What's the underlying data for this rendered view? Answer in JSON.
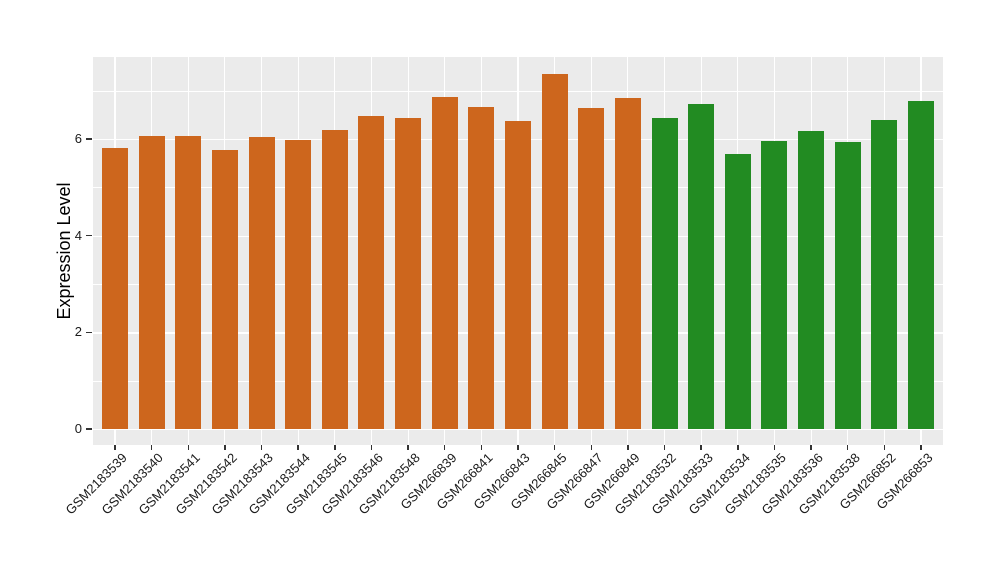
{
  "chart_data": {
    "type": "bar",
    "title": "",
    "xlabel": "",
    "ylabel": "Expression Level",
    "ylim": [
      0,
      7.7
    ],
    "yticks_major": [
      0,
      2,
      4,
      6
    ],
    "yticks_minor": [
      1,
      3,
      5,
      7
    ],
    "grid": true,
    "legend": "none",
    "panel_background": "#EBEBEB",
    "gridline_color": "#FFFFFF",
    "tick_color": "#333333",
    "text_color": "#1a1a1a",
    "group_colors": {
      "group1": "#CD661D",
      "group2": "#228B22"
    },
    "bars": [
      {
        "label": "GSM2183539",
        "value": 5.81,
        "group": "group1"
      },
      {
        "label": "GSM2183540",
        "value": 6.06,
        "group": "group1"
      },
      {
        "label": "GSM2183541",
        "value": 6.06,
        "group": "group1"
      },
      {
        "label": "GSM2183542",
        "value": 5.78,
        "group": "group1"
      },
      {
        "label": "GSM2183543",
        "value": 6.04,
        "group": "group1"
      },
      {
        "label": "GSM2183544",
        "value": 5.97,
        "group": "group1"
      },
      {
        "label": "GSM2183545",
        "value": 6.18,
        "group": "group1"
      },
      {
        "label": "GSM2183546",
        "value": 6.47,
        "group": "group1"
      },
      {
        "label": "GSM2183548",
        "value": 6.43,
        "group": "group1"
      },
      {
        "label": "GSM266839",
        "value": 6.86,
        "group": "group1"
      },
      {
        "label": "GSM266841",
        "value": 6.67,
        "group": "group1"
      },
      {
        "label": "GSM266843",
        "value": 6.37,
        "group": "group1"
      },
      {
        "label": "GSM266845",
        "value": 7.35,
        "group": "group1"
      },
      {
        "label": "GSM266847",
        "value": 6.65,
        "group": "group1"
      },
      {
        "label": "GSM266849",
        "value": 6.84,
        "group": "group1"
      },
      {
        "label": "GSM2183532",
        "value": 6.44,
        "group": "group2"
      },
      {
        "label": "GSM2183533",
        "value": 6.72,
        "group": "group2"
      },
      {
        "label": "GSM2183534",
        "value": 5.7,
        "group": "group2"
      },
      {
        "label": "GSM2183535",
        "value": 5.96,
        "group": "group2"
      },
      {
        "label": "GSM2183536",
        "value": 6.17,
        "group": "group2"
      },
      {
        "label": "GSM2183538",
        "value": 5.93,
        "group": "group2"
      },
      {
        "label": "GSM266852",
        "value": 6.39,
        "group": "group2"
      },
      {
        "label": "GSM266853",
        "value": 6.79,
        "group": "group2"
      }
    ]
  }
}
